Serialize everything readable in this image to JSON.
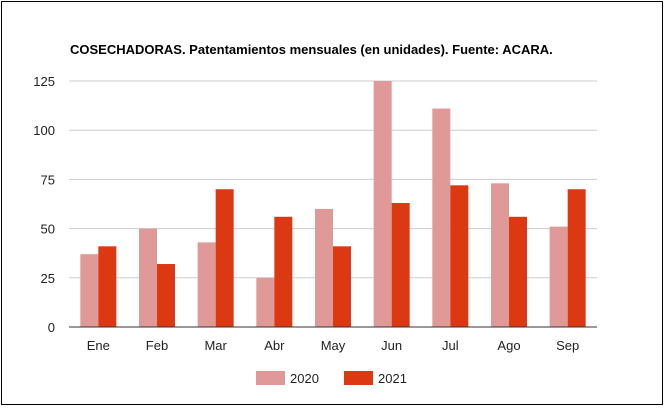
{
  "chart_data": {
    "type": "bar",
    "title": "COSECHADORAS. Patentamientos mensuales (en unidades). Fuente: ACARA.",
    "xlabel": "",
    "ylabel": "",
    "categories": [
      "Ene",
      "Feb",
      "Mar",
      "Abr",
      "May",
      "Jun",
      "Jul",
      "Ago",
      "Sep"
    ],
    "series": [
      {
        "name": "2020",
        "color": "#e09999",
        "values": [
          37,
          50,
          43,
          25,
          60,
          125,
          111,
          73,
          51
        ]
      },
      {
        "name": "2021",
        "color": "#dc3912",
        "values": [
          41,
          32,
          70,
          56,
          41,
          63,
          72,
          56,
          70
        ]
      }
    ],
    "ylim": [
      0,
      125
    ],
    "yticks": [
      0,
      25,
      50,
      75,
      100,
      125
    ],
    "grid": true,
    "legend_position": "bottom"
  }
}
